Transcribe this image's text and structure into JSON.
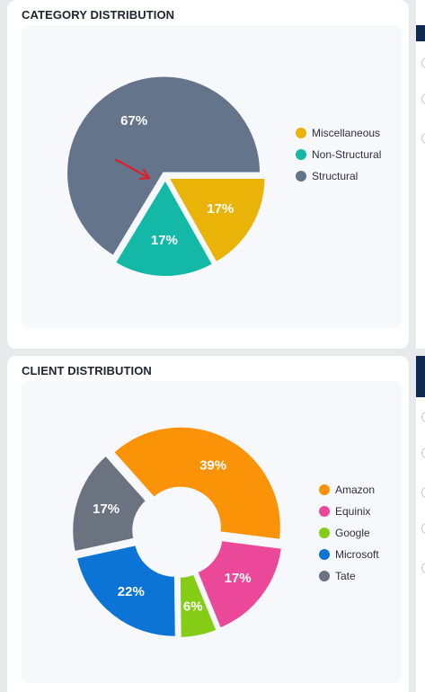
{
  "cards": {
    "category": {
      "title": "CATEGORY DISTRIBUTION"
    },
    "client": {
      "title": "CLIENT DISTRIBUTION"
    }
  },
  "chart_data": [
    {
      "type": "pie",
      "title": "CATEGORY DISTRIBUTION",
      "series": [
        {
          "name": "Miscellaneous",
          "value": 17,
          "label": "17%",
          "color": "#eab308"
        },
        {
          "name": "Non-Structural",
          "value": 17,
          "label": "17%",
          "color": "#14b8a6"
        },
        {
          "name": "Structural",
          "value": 67,
          "label": "67%",
          "color": "#64748b"
        }
      ],
      "legend_position": "right"
    },
    {
      "type": "pie",
      "subtype": "donut",
      "title": "CLIENT DISTRIBUTION",
      "series": [
        {
          "name": "Amazon",
          "value": 39,
          "label": "39%",
          "color": "#fb9309"
        },
        {
          "name": "Equinix",
          "value": 17,
          "label": "17%",
          "color": "#ec4899"
        },
        {
          "name": "Google",
          "value": 6,
          "label": "6%",
          "color": "#84cc16"
        },
        {
          "name": "Microsoft",
          "value": 22,
          "label": "22%",
          "color": "#0b74d4"
        },
        {
          "name": "Tate",
          "value": 17,
          "label": "17%",
          "color": "#6b7280"
        }
      ],
      "legend_position": "right"
    }
  ]
}
